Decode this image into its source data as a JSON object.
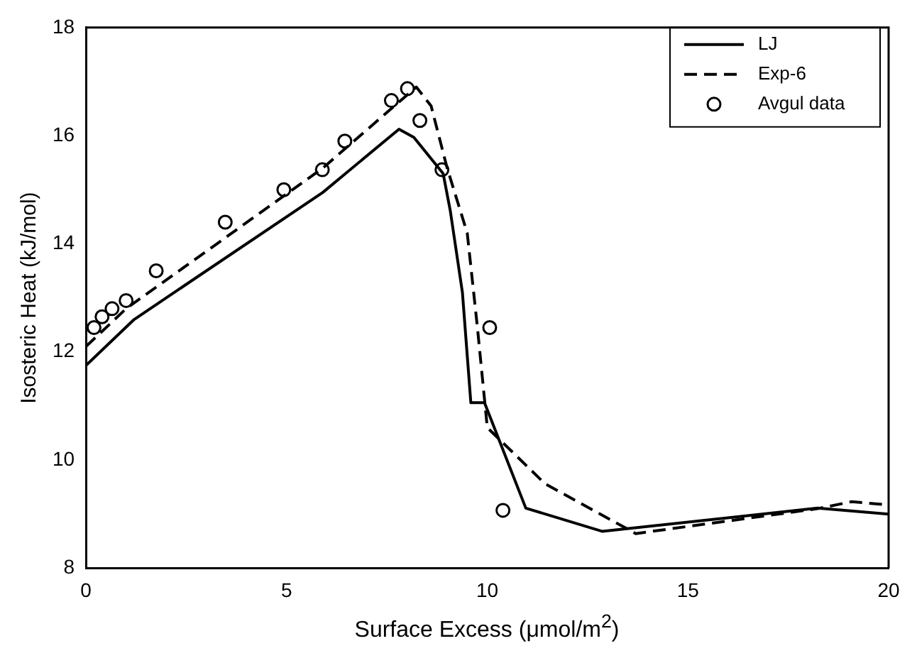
{
  "chart_data": {
    "type": "line",
    "xlabel": "Surface Excess (μmol/m$^{2}$)",
    "ylabel": "Isosteric Heat (kJ/mol)",
    "xlim": [
      0,
      20
    ],
    "xticks": [
      0,
      5,
      10,
      15,
      20
    ],
    "ylim": [
      8,
      18
    ],
    "yticks": [
      8,
      10,
      12,
      14,
      16,
      18
    ],
    "grid": false,
    "legend": "top right",
    "series": [
      {
        "name": "LJ",
        "color": "#000000",
        "line_style": "solid",
        "marker": "none",
        "x": [
          0,
          1.2,
          5.9,
          7.8,
          8.17,
          8.9,
          9.08,
          9.38,
          9.59,
          9.93,
          10.96,
          12.87,
          18.23,
          20
        ],
        "values": [
          11.75,
          12.6,
          14.95,
          16.12,
          15.97,
          15.3,
          14.6,
          13.1,
          11.06,
          11.06,
          9.11,
          8.68,
          9.11,
          9.0
        ]
      },
      {
        "name": "Exp-6",
        "color": "#000000",
        "line_style": "dashed",
        "marker": "none",
        "x": [
          0,
          1,
          5.9,
          8.23,
          8.6,
          9.0,
          9.5,
          9.75,
          10.0,
          11.44,
          13.7,
          18.23,
          19.08,
          20
        ],
        "values": [
          12.1,
          12.8,
          15.4,
          16.9,
          16.55,
          15.4,
          14.2,
          12.48,
          10.6,
          9.56,
          8.64,
          9.1,
          9.23,
          9.17
        ]
      },
      {
        "name": "Avgul data",
        "type": "scatter",
        "color": "#000000",
        "marker": "circle",
        "x": [
          0.2,
          0.4,
          0.65,
          1.0,
          1.75,
          3.47,
          4.93,
          5.89,
          6.45,
          7.61,
          8.01,
          8.32,
          8.87,
          10.06,
          10.39
        ],
        "values": [
          12.45,
          12.65,
          12.8,
          12.95,
          13.5,
          14.4,
          15.0,
          15.37,
          15.9,
          16.65,
          16.87,
          16.28,
          15.37,
          12.45,
          9.07
        ]
      }
    ]
  }
}
